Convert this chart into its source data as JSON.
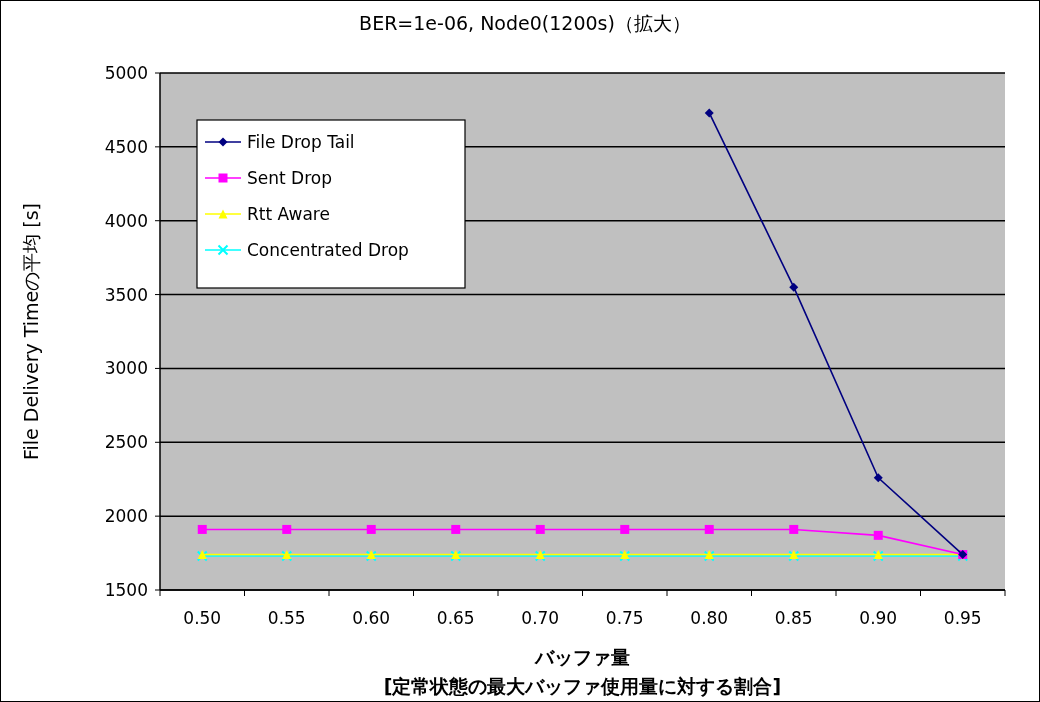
{
  "chart_data": {
    "type": "line",
    "title": "BER=1e-06, Node0(1200s)（拡大）",
    "xlabel": "バッファ量\n[定常状態の最大バッファ使用量に対する割合]",
    "ylabel": "File Delivery Timeの平均 [s]",
    "categories": [
      "0.50",
      "0.55",
      "0.60",
      "0.65",
      "0.70",
      "0.75",
      "0.80",
      "0.85",
      "0.90",
      "0.95"
    ],
    "ylim": [
      1500,
      5000
    ],
    "yticks": [
      1500,
      2000,
      2500,
      3000,
      3500,
      4000,
      4500,
      5000
    ],
    "grid": "y",
    "legend": "top left",
    "series": [
      {
        "name": "File Drop Tail",
        "color": "#000080",
        "marker": "diamond",
        "values": [
          null,
          null,
          null,
          null,
          null,
          null,
          4730,
          3550,
          2260,
          1740
        ]
      },
      {
        "name": "Sent Drop",
        "color": "#ff00ff",
        "marker": "square",
        "values": [
          1910,
          1910,
          1910,
          1910,
          1910,
          1910,
          1910,
          1910,
          1870,
          1740
        ]
      },
      {
        "name": "Rtt Aware",
        "color": "#ffff00",
        "marker": "triangle",
        "values": [
          1740,
          1740,
          1740,
          1740,
          1740,
          1740,
          1740,
          1740,
          1740,
          1740
        ]
      },
      {
        "name": "Concentrated Drop",
        "color": "#00ffff",
        "marker": "cross",
        "values": [
          1730,
          1730,
          1730,
          1730,
          1730,
          1730,
          1730,
          1730,
          1730,
          1730
        ]
      }
    ]
  }
}
